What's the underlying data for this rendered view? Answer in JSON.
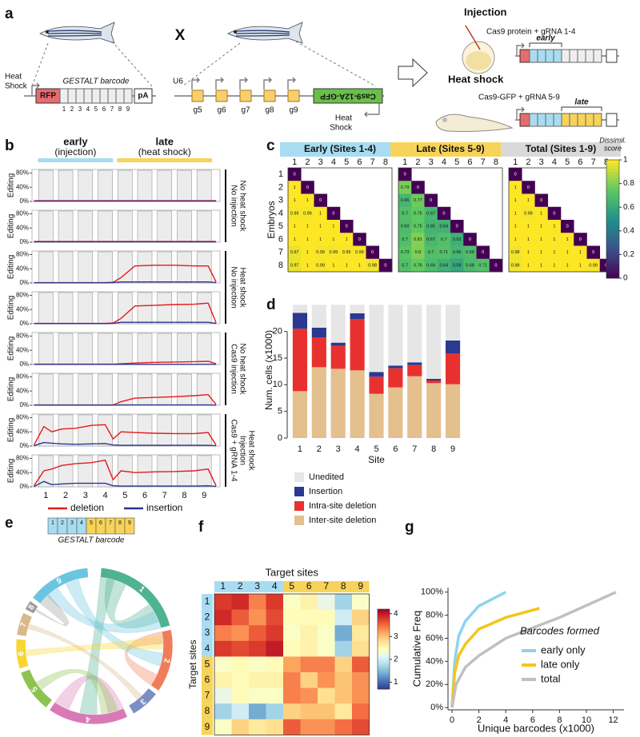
{
  "panel_labels": {
    "a": "a",
    "b": "b",
    "c": "c",
    "d": "d",
    "e": "e",
    "f": "f",
    "g": "g"
  },
  "panel_a": {
    "heat_shock_left": [
      "Heat",
      "Shock"
    ],
    "barcode_label": "GESTALT barcode",
    "rfp": "RFP",
    "barcode_sites": [
      "1",
      "2",
      "3",
      "4",
      "5",
      "6",
      "7",
      "8",
      "9"
    ],
    "pa": "pA",
    "cross": "X",
    "promoter": "U6",
    "guides": [
      "g5",
      "g6",
      "g7",
      "g8",
      "g9"
    ],
    "cas9_construct": "Cas9-12A-GFP",
    "heat_shock_right": [
      "Heat",
      "Shock"
    ],
    "injection_title": "Injection",
    "injection_text": "Cas9 protein + gRNA 1-4",
    "early": "early",
    "heatshock_title": "Heat shock",
    "heatshock_text": "Cas9-GFP + gRNA 5-9",
    "late": "late"
  },
  "panel_e": {
    "barcode_sites": [
      "1",
      "2",
      "3",
      "4",
      "5",
      "6",
      "7",
      "8",
      "9"
    ],
    "barcode_label": "GESTALT barcode",
    "chord_labels": [
      "1",
      "2",
      "3",
      "4",
      "5",
      "6",
      "7",
      "8",
      "9"
    ]
  },
  "chart_data": [
    {
      "type": "line",
      "early_label": "early",
      "early_sub": "(injection)",
      "early_color": "#a8dcf2",
      "late_label": "late",
      "late_sub": "(heat shock)",
      "late_color": "#f7d35a",
      "ylabel": "Editing",
      "x": [
        0.4,
        0.9,
        1.3,
        1.8,
        2.5,
        3.3,
        4.0,
        4.4,
        4.8,
        5.5,
        6.5,
        7.5,
        8.5,
        9.2,
        9.6
      ],
      "xlim": [
        0.3,
        9.8
      ],
      "xticks": [
        1,
        2,
        3,
        4,
        5,
        6,
        7,
        8,
        9
      ],
      "ylim": [
        0,
        90
      ],
      "yticks": [
        {
          "value": 0,
          "label": "0%"
        },
        {
          "value": 40,
          "label": "40%"
        },
        {
          "value": 80,
          "label": "80%"
        }
      ],
      "legend": [
        {
          "name": "deletion",
          "color": "#e31a1c"
        },
        {
          "name": "insertion",
          "color": "#283593"
        }
      ],
      "subplots": [
        {
          "values": [
            [
              2,
              2,
              2,
              2,
              2,
              2,
              2,
              2,
              2,
              2,
              2,
              2,
              2,
              2,
              2
            ],
            [
              1,
              1,
              1,
              1,
              1,
              1,
              1,
              1,
              1,
              1,
              1,
              1,
              1,
              1,
              1
            ]
          ]
        },
        {
          "values": [
            [
              2,
              2,
              2,
              2,
              2,
              2,
              2,
              2,
              2,
              2,
              2,
              2,
              2,
              2,
              2
            ],
            [
              1,
              1,
              1,
              1,
              1,
              1,
              1,
              1,
              1,
              1,
              1,
              1,
              1,
              1,
              1
            ]
          ]
        },
        {
          "values": [
            [
              1,
              1,
              1,
              1,
              1,
              1,
              1,
              2,
              15,
              48,
              50,
              50,
              48,
              48,
              3
            ],
            [
              0.5,
              0.5,
              0.5,
              0.5,
              0.5,
              0.5,
              0.5,
              1,
              3,
              3,
              3,
              3,
              3,
              3,
              1
            ]
          ]
        },
        {
          "values": [
            [
              1,
              1,
              1,
              1,
              1,
              1,
              1,
              2,
              15,
              50,
              52,
              54,
              55,
              58,
              3
            ],
            [
              0.5,
              0.5,
              0.5,
              0.5,
              0.5,
              0.5,
              0.5,
              1,
              4,
              4,
              4,
              4,
              4,
              4,
              1
            ]
          ]
        },
        {
          "values": [
            [
              1,
              1,
              1,
              1,
              1,
              1,
              1,
              1,
              2,
              4,
              6,
              7,
              8,
              9,
              2
            ],
            [
              0.5,
              0.5,
              0.5,
              0.5,
              0.5,
              0.5,
              0.5,
              0.5,
              0.5,
              0.5,
              0.5,
              0.5,
              0.5,
              0.5,
              0.5
            ]
          ]
        },
        {
          "values": [
            [
              1,
              1,
              1,
              1,
              1,
              1,
              1,
              1,
              10,
              20,
              22,
              24,
              27,
              30,
              2
            ],
            [
              0.5,
              0.5,
              0.5,
              0.5,
              0.5,
              0.5,
              0.5,
              0.5,
              1,
              1,
              1,
              1,
              1,
              1,
              0.5
            ]
          ]
        },
        {
          "values": [
            [
              3,
              55,
              40,
              48,
              50,
              58,
              60,
              20,
              40,
              38,
              36,
              35,
              35,
              38,
              3
            ],
            [
              1,
              10,
              8,
              6,
              5,
              6,
              7,
              3,
              2,
              2,
              2,
              2,
              2,
              2,
              1
            ]
          ]
        },
        {
          "values": [
            [
              3,
              45,
              50,
              60,
              65,
              68,
              75,
              20,
              45,
              40,
              42,
              43,
              45,
              50,
              3
            ],
            [
              1,
              15,
              6,
              8,
              10,
              10,
              10,
              3,
              2,
              2,
              2,
              2,
              2,
              3,
              1
            ]
          ]
        }
      ],
      "groups": [
        [
          "No injection",
          "No heat shock"
        ],
        [
          "No injection",
          "Heat shock"
        ],
        [
          "Cas9 injection",
          "No heat shock"
        ],
        [
          "Cas9 + gRNA 1-4",
          "Injection",
          "Heat shock"
        ]
      ]
    },
    {
      "type": "heatmap",
      "title": "Early (Sites 1-4)",
      "title_color": "#a8dcf2",
      "categories": [
        1,
        2,
        3,
        4,
        5,
        6,
        7,
        8
      ],
      "row_categories": [
        1,
        2,
        3,
        4,
        5,
        6,
        7,
        8
      ],
      "ylabel": "Embryos",
      "colormap": "viridis",
      "zlim": [
        0,
        1
      ],
      "annotate": true,
      "values": [
        [
          0
        ],
        [
          1,
          0
        ],
        [
          1,
          1,
          0
        ],
        [
          0.99,
          0.99,
          1,
          0
        ],
        [
          1,
          1,
          1,
          1,
          0
        ],
        [
          1,
          1,
          1,
          1,
          1,
          0
        ],
        [
          0.97,
          1,
          0.99,
          0.99,
          0.99,
          0.99,
          0
        ],
        [
          0.97,
          1,
          0.99,
          1,
          1,
          1,
          0.98,
          0
        ]
      ]
    },
    {
      "type": "heatmap",
      "title": "Late (Sites 5-9)",
      "title_color": "#f7d35a",
      "categories": [
        1,
        2,
        3,
        4,
        5,
        6,
        7,
        8
      ],
      "colormap": "viridis",
      "zlim": [
        0,
        1
      ],
      "annotate": true,
      "values": [
        [
          0
        ],
        [
          0.79,
          0
        ],
        [
          0.66,
          0.77,
          0
        ],
        [
          0.7,
          0.75,
          0.67,
          0
        ],
        [
          0.69,
          0.75,
          0.65,
          0.64,
          0
        ],
        [
          0.7,
          0.81,
          0.67,
          0.7,
          0.63,
          0
        ],
        [
          0.73,
          0.8,
          0.7,
          0.71,
          0.66,
          0.69,
          0
        ],
        [
          0.7,
          0.76,
          0.69,
          0.64,
          0.59,
          0.68,
          0.71,
          0
        ]
      ]
    },
    {
      "type": "heatmap",
      "title": "Total (Sites 1-9)",
      "title_color": "#d9d9d9",
      "categories": [
        1,
        2,
        3,
        4,
        5,
        6,
        7,
        8
      ],
      "colormap": "viridis",
      "zlim": [
        0,
        1
      ],
      "annotate": true,
      "zticks": [
        0,
        0.2,
        0.4,
        0.6,
        0.8,
        1
      ],
      "zlabel": [
        "Dissimil.",
        "score"
      ],
      "values": [
        [
          0
        ],
        [
          1,
          0
        ],
        [
          1,
          1,
          0
        ],
        [
          1,
          0.99,
          1,
          0
        ],
        [
          1,
          1,
          1,
          1,
          0
        ],
        [
          1,
          1,
          1,
          1,
          1,
          0
        ],
        [
          0.98,
          1,
          1,
          1,
          1,
          1,
          0
        ],
        [
          0.98,
          1,
          1,
          1,
          1,
          1,
          0.99,
          0
        ]
      ]
    },
    {
      "type": "bar",
      "stacked": true,
      "categories": [
        1,
        2,
        3,
        4,
        5,
        6,
        7,
        8,
        9
      ],
      "xlabel": "Site",
      "ylabel": "Num. cells (x1000)",
      "ylim": [
        0,
        25.5
      ],
      "yticks": [
        0,
        5,
        10,
        15,
        20
      ],
      "series": [
        {
          "name": "Unedited",
          "color": "#e6e6e6",
          "values": [
            1.5,
            4.3,
            7.1,
            1.6,
            12.6,
            11.4,
            10.8,
            13.9,
            6.7
          ]
        },
        {
          "name": "Insertion",
          "color": "#2b3990",
          "values": [
            3.0,
            1.8,
            0.6,
            1.1,
            0.9,
            0.5,
            0.5,
            0.3,
            2.4
          ]
        },
        {
          "name": "Intra-site deletion",
          "color": "#e8312f",
          "values": [
            11.7,
            5.6,
            4.3,
            9.6,
            3.2,
            3.6,
            2.1,
            0.5,
            5.8
          ]
        },
        {
          "name": "Inter-site deletion",
          "color": "#e3c08d",
          "values": [
            8.8,
            13.3,
            13.0,
            12.7,
            8.3,
            9.5,
            11.6,
            10.3,
            10.1
          ]
        }
      ]
    },
    {
      "type": "heatmap",
      "title": "Target sites",
      "ylabel": "Target sites",
      "categories": [
        1,
        2,
        3,
        4,
        5,
        6,
        7,
        8,
        9
      ],
      "row_categories": [
        1,
        2,
        3,
        4,
        5,
        6,
        7,
        8,
        9
      ],
      "category_colors": [
        "#a8dcf2",
        "#a8dcf2",
        "#a8dcf2",
        "#a8dcf2",
        "#f7d35a",
        "#f7d35a",
        "#f7d35a",
        "#f7d35a",
        "#f7d35a"
      ],
      "colormap": "RdYlBu_r",
      "zlim": [
        0.7,
        4.2
      ],
      "zticks": [
        1,
        2,
        3,
        4
      ],
      "values": [
        [
          3.8,
          3.9,
          3.4,
          3.8,
          2.4,
          2.6,
          2.2,
          1.7,
          2.4
        ],
        [
          3.9,
          3.6,
          3.3,
          3.7,
          2.5,
          2.5,
          2.5,
          2.0,
          2.9
        ],
        [
          3.4,
          3.3,
          3.6,
          3.8,
          2.4,
          2.6,
          2.4,
          1.4,
          2.7
        ],
        [
          3.8,
          3.7,
          3.8,
          4.0,
          2.5,
          2.6,
          2.4,
          1.7,
          2.8
        ],
        [
          2.4,
          2.5,
          2.4,
          2.5,
          3.2,
          3.4,
          3.4,
          2.9,
          3.6
        ],
        [
          2.6,
          2.5,
          2.6,
          2.6,
          3.4,
          2.9,
          3.3,
          3.0,
          3.3
        ],
        [
          2.2,
          2.5,
          2.4,
          2.4,
          3.4,
          3.3,
          2.8,
          3.0,
          3.3
        ],
        [
          1.7,
          2.0,
          1.4,
          1.7,
          2.9,
          3.0,
          3.0,
          2.7,
          3.5
        ],
        [
          2.4,
          2.9,
          2.7,
          2.8,
          3.6,
          3.3,
          3.3,
          3.5,
          3.7
        ]
      ]
    },
    {
      "type": "line",
      "xlabel": "Unique barcodes (x1000)",
      "ylabel": "Cumulative Freq",
      "xlim": [
        -0.3,
        12.8
      ],
      "xticks": [
        0,
        2,
        4,
        6,
        8,
        10,
        12
      ],
      "ylim": [
        -2,
        104
      ],
      "yticks": [
        {
          "value": 0,
          "label": "0%"
        },
        {
          "value": 20,
          "label": "20%"
        },
        {
          "value": 40,
          "label": "40%"
        },
        {
          "value": 60,
          "label": "60%"
        },
        {
          "value": 80,
          "label": "80%"
        },
        {
          "value": 100,
          "label": "100%"
        }
      ],
      "legend_title": "Barcodes formed",
      "series": [
        {
          "name": "early only",
          "color": "#8fd3f0",
          "x": [
            0,
            0.2,
            0.5,
            1,
            2,
            3,
            4
          ],
          "values": [
            0,
            40,
            62,
            75,
            88,
            94,
            100
          ]
        },
        {
          "name": "late only",
          "color": "#f5c518",
          "x": [
            0,
            0.2,
            0.5,
            1,
            2,
            4,
            6.5
          ],
          "values": [
            0,
            30,
            45,
            55,
            68,
            78,
            86
          ]
        },
        {
          "name": "total",
          "color": "#c0c0c0",
          "x": [
            0,
            0.3,
            1,
            2,
            4,
            8,
            12.2
          ],
          "values": [
            0,
            20,
            35,
            45,
            60,
            78,
            100
          ]
        }
      ]
    }
  ]
}
